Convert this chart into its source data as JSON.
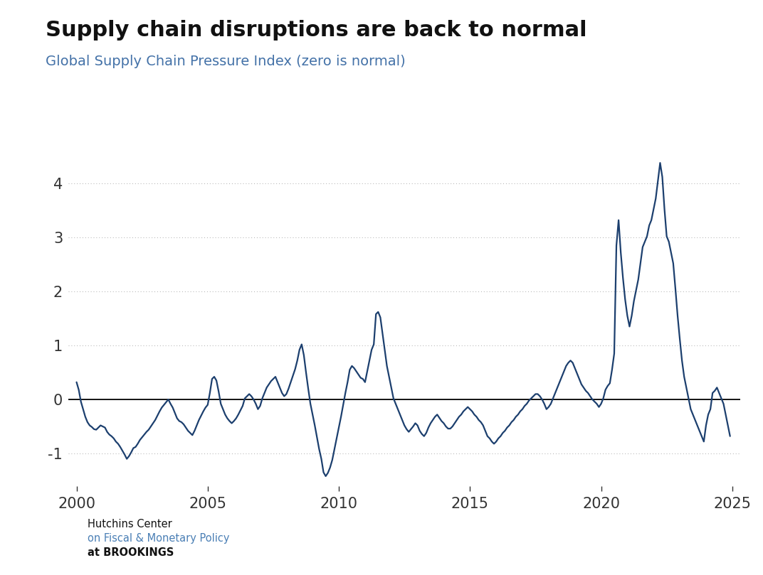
{
  "title": "Supply chain disruptions are back to normal",
  "subtitle": "Global Supply Chain Pressure Index (zero is normal)",
  "line_color": "#1c3f6e",
  "background_color": "#ffffff",
  "grid_color": "#aaaaaa",
  "zero_line_color": "#000000",
  "title_fontsize": 22,
  "subtitle_fontsize": 14,
  "tick_fontsize": 15,
  "yticks": [
    -1,
    0,
    1,
    2,
    3,
    4
  ],
  "xlim": [
    1999.7,
    2025.3
  ],
  "ylim": [
    -1.6,
    5.0
  ],
  "xticks": [
    2000,
    2005,
    2010,
    2015,
    2020,
    2025
  ],
  "logo_text_line1": "Hutchins Center",
  "logo_text_line2": "on Fiscal & Monetary Policy",
  "logo_text_line3": "at BROOKINGS",
  "values": [
    0.32,
    0.18,
    -0.04,
    -0.18,
    -0.32,
    -0.42,
    -0.48,
    -0.51,
    -0.55,
    -0.56,
    -0.52,
    -0.48,
    -0.5,
    -0.52,
    -0.6,
    -0.65,
    -0.68,
    -0.72,
    -0.78,
    -0.82,
    -0.88,
    -0.95,
    -1.02,
    -1.1,
    -1.05,
    -0.98,
    -0.9,
    -0.88,
    -0.82,
    -0.75,
    -0.7,
    -0.65,
    -0.6,
    -0.56,
    -0.5,
    -0.44,
    -0.38,
    -0.3,
    -0.22,
    -0.15,
    -0.1,
    -0.05,
    0.0,
    -0.08,
    -0.15,
    -0.25,
    -0.35,
    -0.4,
    -0.42,
    -0.46,
    -0.52,
    -0.58,
    -0.62,
    -0.66,
    -0.58,
    -0.48,
    -0.38,
    -0.3,
    -0.22,
    -0.15,
    -0.1,
    0.12,
    0.38,
    0.42,
    0.35,
    0.15,
    -0.08,
    -0.18,
    -0.28,
    -0.35,
    -0.4,
    -0.44,
    -0.4,
    -0.35,
    -0.28,
    -0.2,
    -0.12,
    0.02,
    0.06,
    0.1,
    0.06,
    0.0,
    -0.08,
    -0.18,
    -0.12,
    0.02,
    0.12,
    0.22,
    0.28,
    0.34,
    0.38,
    0.42,
    0.32,
    0.22,
    0.12,
    0.06,
    0.1,
    0.2,
    0.32,
    0.44,
    0.56,
    0.72,
    0.92,
    1.02,
    0.82,
    0.5,
    0.2,
    -0.08,
    -0.28,
    -0.48,
    -0.7,
    -0.92,
    -1.1,
    -1.35,
    -1.42,
    -1.36,
    -1.26,
    -1.12,
    -0.92,
    -0.72,
    -0.52,
    -0.32,
    -0.1,
    0.12,
    0.32,
    0.55,
    0.62,
    0.58,
    0.52,
    0.46,
    0.4,
    0.38,
    0.32,
    0.52,
    0.72,
    0.92,
    1.02,
    1.58,
    1.62,
    1.52,
    1.22,
    0.92,
    0.62,
    0.42,
    0.22,
    0.02,
    -0.08,
    -0.18,
    -0.28,
    -0.38,
    -0.48,
    -0.55,
    -0.6,
    -0.55,
    -0.5,
    -0.44,
    -0.48,
    -0.58,
    -0.64,
    -0.68,
    -0.62,
    -0.52,
    -0.44,
    -0.38,
    -0.32,
    -0.28,
    -0.34,
    -0.4,
    -0.44,
    -0.5,
    -0.54,
    -0.54,
    -0.5,
    -0.44,
    -0.38,
    -0.32,
    -0.28,
    -0.22,
    -0.18,
    -0.14,
    -0.18,
    -0.22,
    -0.28,
    -0.32,
    -0.38,
    -0.42,
    -0.48,
    -0.58,
    -0.68,
    -0.72,
    -0.78,
    -0.82,
    -0.78,
    -0.72,
    -0.68,
    -0.62,
    -0.58,
    -0.52,
    -0.48,
    -0.42,
    -0.38,
    -0.32,
    -0.28,
    -0.22,
    -0.18,
    -0.12,
    -0.08,
    -0.02,
    0.02,
    0.06,
    0.1,
    0.1,
    0.06,
    0.0,
    -0.08,
    -0.18,
    -0.14,
    -0.08,
    0.02,
    0.12,
    0.22,
    0.32,
    0.42,
    0.52,
    0.62,
    0.68,
    0.72,
    0.68,
    0.58,
    0.48,
    0.38,
    0.28,
    0.22,
    0.16,
    0.12,
    0.06,
    0.0,
    -0.04,
    -0.08,
    -0.14,
    -0.08,
    0.02,
    0.18,
    0.25,
    0.3,
    0.55,
    0.85,
    2.85,
    3.32,
    2.72,
    2.25,
    1.85,
    1.55,
    1.35,
    1.55,
    1.82,
    2.02,
    2.22,
    2.52,
    2.82,
    2.92,
    3.02,
    3.22,
    3.32,
    3.52,
    3.72,
    4.05,
    4.38,
    4.12,
    3.52,
    3.02,
    2.92,
    2.72,
    2.52,
    2.05,
    1.55,
    1.12,
    0.72,
    0.42,
    0.22,
    0.02,
    -0.18,
    -0.28,
    -0.38,
    -0.48,
    -0.58,
    -0.68,
    -0.78,
    -0.48,
    -0.28,
    -0.18,
    0.12,
    0.16,
    0.22,
    0.12,
    0.02,
    -0.08,
    -0.28,
    -0.48,
    -0.68
  ]
}
